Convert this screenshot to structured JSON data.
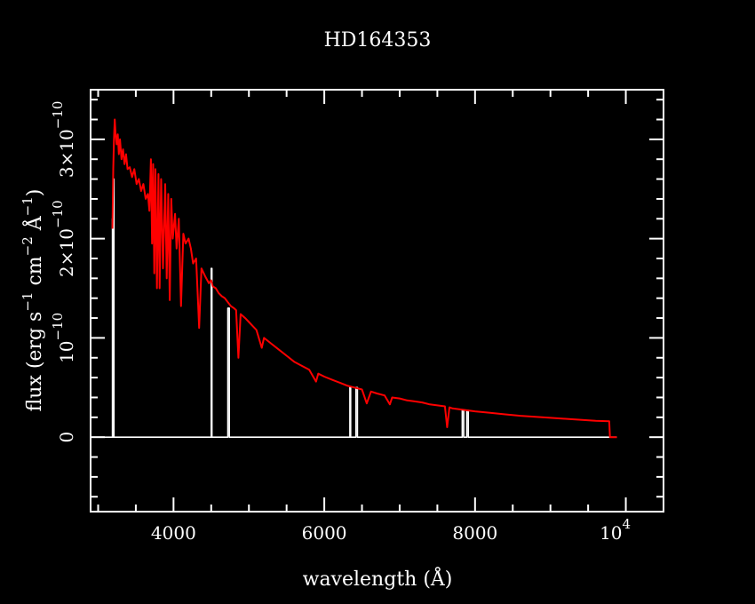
{
  "chart_data": {
    "type": "line",
    "title": "HD164353",
    "xlabel": "wavelength (Å)",
    "ylabel": {
      "prefix": "flux (erg s",
      "exp1": "−1",
      "mid1": " cm",
      "exp2": "−2",
      "mid2": " Å",
      "exp3": "−1",
      "suffix": ")"
    },
    "xlim": [
      2900,
      10500
    ],
    "ylim": [
      -7.5e-11,
      3.5e-10
    ],
    "x_ticks": [
      {
        "value": 4000,
        "label": "4000"
      },
      {
        "value": 6000,
        "label": "6000"
      },
      {
        "value": 8000,
        "label": "8000"
      }
    ],
    "x_tick_last": {
      "value": 10000,
      "base": "10",
      "exp": "4"
    },
    "y_ticks": [
      {
        "value": 0,
        "mantissa": "0",
        "exp": ""
      },
      {
        "value": 1e-10,
        "mantissa": "10",
        "exp": "−10"
      },
      {
        "value": 2e-10,
        "mantissa": "2×10",
        "exp": "−10"
      },
      {
        "value": 3e-10,
        "mantissa": "3×10",
        "exp": "−10"
      }
    ],
    "x_minor_step": 500,
    "y_minor_step": 2e-11,
    "series": [
      {
        "color": "#ffffff",
        "values": [
          [
            2900,
            0
          ],
          [
            3190,
            0
          ],
          [
            3190,
            2.2e-10
          ],
          [
            3195,
            2.2e-10
          ],
          [
            3195,
            0
          ],
          [
            3200,
            0
          ],
          [
            3200,
            2.6e-10
          ],
          [
            3210,
            2.6e-10
          ],
          [
            3210,
            0
          ],
          [
            4330,
            0
          ],
          [
            4500,
            0
          ],
          [
            4500,
            1.7e-10
          ],
          [
            4510,
            1.7e-10
          ],
          [
            4510,
            0
          ],
          [
            4520,
            0
          ],
          [
            4710,
            0
          ],
          [
            4720,
            0
          ],
          [
            4720,
            1.3e-10
          ],
          [
            4740,
            1.3e-10
          ],
          [
            4740,
            0
          ],
          [
            4860,
            0
          ],
          [
            5880,
            0
          ],
          [
            6340,
            0
          ],
          [
            6340,
            5e-11
          ],
          [
            6350,
            5e-11
          ],
          [
            6350,
            0
          ],
          [
            6420,
            0
          ],
          [
            6420,
            5e-11
          ],
          [
            6440,
            5e-11
          ],
          [
            6440,
            0
          ],
          [
            6500,
            0
          ],
          [
            7690,
            0
          ],
          [
            7830,
            0
          ],
          [
            7830,
            2.7e-11
          ],
          [
            7850,
            2.7e-11
          ],
          [
            7850,
            0
          ],
          [
            7890,
            0
          ],
          [
            7890,
            2.7e-11
          ],
          [
            7910,
            2.7e-11
          ],
          [
            7910,
            0
          ],
          [
            8040,
            0
          ],
          [
            9780,
            0
          ],
          [
            9880,
            0
          ]
        ]
      },
      {
        "color": "#ff0000",
        "values": [
          [
            3190,
            2.1e-10
          ],
          [
            3200,
            2.7e-10
          ],
          [
            3210,
            3e-10
          ],
          [
            3220,
            3.2e-10
          ],
          [
            3230,
            3.07e-10
          ],
          [
            3245,
            2.95e-10
          ],
          [
            3260,
            3.05e-10
          ],
          [
            3275,
            2.85e-10
          ],
          [
            3290,
            3e-10
          ],
          [
            3310,
            2.8e-10
          ],
          [
            3330,
            2.9e-10
          ],
          [
            3350,
            2.75e-10
          ],
          [
            3370,
            2.85e-10
          ],
          [
            3390,
            2.7e-10
          ],
          [
            3420,
            2.72e-10
          ],
          [
            3450,
            2.62e-10
          ],
          [
            3480,
            2.7e-10
          ],
          [
            3510,
            2.55e-10
          ],
          [
            3540,
            2.6e-10
          ],
          [
            3570,
            2.48e-10
          ],
          [
            3600,
            2.55e-10
          ],
          [
            3630,
            2.4e-10
          ],
          [
            3660,
            2.45e-10
          ],
          [
            3680,
            2.28e-10
          ],
          [
            3700,
            2.8e-10
          ],
          [
            3715,
            1.95e-10
          ],
          [
            3730,
            2.75e-10
          ],
          [
            3745,
            1.65e-10
          ],
          [
            3760,
            2.7e-10
          ],
          [
            3780,
            1.5e-10
          ],
          [
            3800,
            2.65e-10
          ],
          [
            3815,
            1.5e-10
          ],
          [
            3835,
            2.6e-10
          ],
          [
            3860,
            1.7e-10
          ],
          [
            3890,
            2.55e-10
          ],
          [
            3910,
            1.6e-10
          ],
          [
            3930,
            2.45e-10
          ],
          [
            3950,
            1.38e-10
          ],
          [
            3970,
            2.4e-10
          ],
          [
            3990,
            2e-10
          ],
          [
            4020,
            2.25e-10
          ],
          [
            4040,
            1.9e-10
          ],
          [
            4070,
            2.2e-10
          ],
          [
            4100,
            1.32e-10
          ],
          [
            4130,
            2.05e-10
          ],
          [
            4160,
            1.95e-10
          ],
          [
            4200,
            2e-10
          ],
          [
            4230,
            1.9e-10
          ],
          [
            4260,
            1.75e-10
          ],
          [
            4300,
            1.8e-10
          ],
          [
            4340,
            1.1e-10
          ],
          [
            4370,
            1.7e-10
          ],
          [
            4420,
            1.62e-10
          ],
          [
            4470,
            1.55e-10
          ],
          [
            4500,
            1.58e-10
          ],
          [
            4520,
            1.52e-10
          ],
          [
            4560,
            1.5e-10
          ],
          [
            4600,
            1.45e-10
          ],
          [
            4640,
            1.42e-10
          ],
          [
            4680,
            1.4e-10
          ],
          [
            4720,
            1.36e-10
          ],
          [
            4760,
            1.32e-10
          ],
          [
            4800,
            1.3e-10
          ],
          [
            4830,
            1.28e-10
          ],
          [
            4861,
            8e-11
          ],
          [
            4890,
            1.24e-10
          ],
          [
            4950,
            1.2e-10
          ],
          [
            5000,
            1.16e-10
          ],
          [
            5100,
            1.08e-10
          ],
          [
            5170,
            9e-11
          ],
          [
            5200,
            1e-10
          ],
          [
            5300,
            9.4e-11
          ],
          [
            5400,
            8.8e-11
          ],
          [
            5500,
            8.2e-11
          ],
          [
            5600,
            7.6e-11
          ],
          [
            5700,
            7.2e-11
          ],
          [
            5800,
            6.8e-11
          ],
          [
            5890,
            5.6e-11
          ],
          [
            5920,
            6.4e-11
          ],
          [
            6000,
            6.1e-11
          ],
          [
            6100,
            5.8e-11
          ],
          [
            6200,
            5.5e-11
          ],
          [
            6300,
            5.2e-11
          ],
          [
            6400,
            5e-11
          ],
          [
            6500,
            4.8e-11
          ],
          [
            6563,
            3.4e-11
          ],
          [
            6620,
            4.6e-11
          ],
          [
            6700,
            4.4e-11
          ],
          [
            6800,
            4.2e-11
          ],
          [
            6870,
            3.3e-11
          ],
          [
            6900,
            4e-11
          ],
          [
            7000,
            3.9e-11
          ],
          [
            7100,
            3.7e-11
          ],
          [
            7200,
            3.6e-11
          ],
          [
            7300,
            3.5e-11
          ],
          [
            7400,
            3.3e-11
          ],
          [
            7500,
            3.2e-11
          ],
          [
            7600,
            3.1e-11
          ],
          [
            7630,
            1e-11
          ],
          [
            7660,
            3e-11
          ],
          [
            7700,
            2.9e-11
          ],
          [
            7800,
            2.8e-11
          ],
          [
            7900,
            2.7e-11
          ],
          [
            8000,
            2.6e-11
          ],
          [
            8200,
            2.45e-11
          ],
          [
            8400,
            2.3e-11
          ],
          [
            8600,
            2.15e-11
          ],
          [
            8800,
            2.05e-11
          ],
          [
            9000,
            1.95e-11
          ],
          [
            9200,
            1.85e-11
          ],
          [
            9400,
            1.75e-11
          ],
          [
            9600,
            1.65e-11
          ],
          [
            9780,
            1.6e-11
          ],
          [
            9790,
            0
          ],
          [
            9880,
            0
          ]
        ]
      }
    ]
  }
}
